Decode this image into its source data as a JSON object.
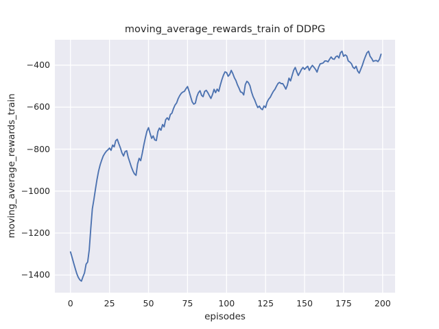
{
  "figure": {
    "background": "#ffffff",
    "plot_background": "#eaeaf2",
    "grid_color": "#ffffff",
    "text_color": "#262626"
  },
  "chart_data": {
    "type": "line",
    "title": "moving_average_rewards_train of DDPG",
    "xlabel": "episodes",
    "ylabel": "moving_average_rewards_train",
    "legend": null,
    "grid": true,
    "line_color": "#4c72b0",
    "line_width": 1.9,
    "xlim": [
      -10,
      208
    ],
    "ylim": [
      -1484,
      -279
    ],
    "xticks": [
      0,
      25,
      50,
      75,
      100,
      125,
      150,
      175,
      200
    ],
    "yticks": [
      -400,
      -600,
      -800,
      -1000,
      -1200,
      -1400
    ],
    "x_start": 0,
    "x_step": 1,
    "n_points": 200,
    "y": [
      -1290,
      -1315,
      -1342,
      -1368,
      -1393,
      -1411,
      -1423,
      -1429,
      -1408,
      -1390,
      -1348,
      -1338,
      -1280,
      -1180,
      -1085,
      -1040,
      -990,
      -945,
      -905,
      -875,
      -852,
      -833,
      -820,
      -810,
      -803,
      -795,
      -806,
      -781,
      -789,
      -760,
      -753,
      -775,
      -795,
      -818,
      -833,
      -812,
      -808,
      -839,
      -862,
      -885,
      -904,
      -918,
      -925,
      -870,
      -844,
      -855,
      -820,
      -780,
      -745,
      -715,
      -698,
      -725,
      -749,
      -737,
      -756,
      -759,
      -716,
      -700,
      -710,
      -683,
      -694,
      -660,
      -651,
      -661,
      -635,
      -629,
      -607,
      -590,
      -580,
      -560,
      -545,
      -534,
      -528,
      -525,
      -512,
      -502,
      -525,
      -550,
      -575,
      -586,
      -581,
      -550,
      -531,
      -522,
      -544,
      -550,
      -525,
      -520,
      -531,
      -545,
      -559,
      -540,
      -515,
      -531,
      -514,
      -525,
      -495,
      -470,
      -448,
      -432,
      -435,
      -453,
      -445,
      -425,
      -440,
      -460,
      -473,
      -494,
      -510,
      -528,
      -530,
      -542,
      -493,
      -477,
      -483,
      -498,
      -528,
      -550,
      -565,
      -585,
      -602,
      -595,
      -607,
      -612,
      -594,
      -602,
      -576,
      -562,
      -553,
      -538,
      -525,
      -515,
      -500,
      -487,
      -482,
      -488,
      -488,
      -500,
      -514,
      -495,
      -462,
      -475,
      -450,
      -425,
      -411,
      -432,
      -449,
      -435,
      -420,
      -411,
      -420,
      -412,
      -405,
      -425,
      -412,
      -401,
      -410,
      -420,
      -433,
      -410,
      -394,
      -392,
      -389,
      -380,
      -380,
      -384,
      -372,
      -361,
      -370,
      -372,
      -360,
      -356,
      -366,
      -340,
      -334,
      -358,
      -351,
      -356,
      -380,
      -385,
      -393,
      -410,
      -416,
      -405,
      -428,
      -438,
      -420,
      -401,
      -378,
      -358,
      -341,
      -334,
      -358,
      -368,
      -382,
      -379,
      -378,
      -383,
      -372,
      -348
    ]
  }
}
